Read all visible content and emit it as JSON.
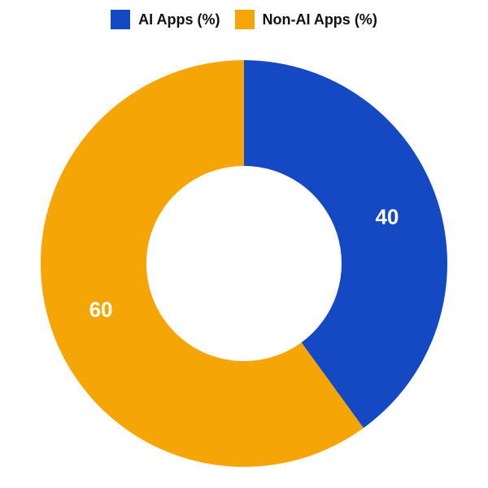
{
  "chart": {
    "type": "donut",
    "background_color": "#ffffff",
    "outer_radius": 250,
    "inner_radius": 120,
    "start_angle_deg": 0,
    "direction": "clockwise",
    "value_label_fontsize": 26,
    "value_label_color": "#ffffff",
    "value_label_radius": 185,
    "legend": {
      "position": "top-center",
      "swatch_size": 24,
      "font_size": 18,
      "font_weight": 700,
      "text_color": "#111111"
    },
    "series": [
      {
        "label": "AI Apps (%)",
        "value": 40,
        "color": "#1549c3"
      },
      {
        "label": "Non-AI Apps (%)",
        "value": 60,
        "color": "#f5a506"
      }
    ]
  }
}
